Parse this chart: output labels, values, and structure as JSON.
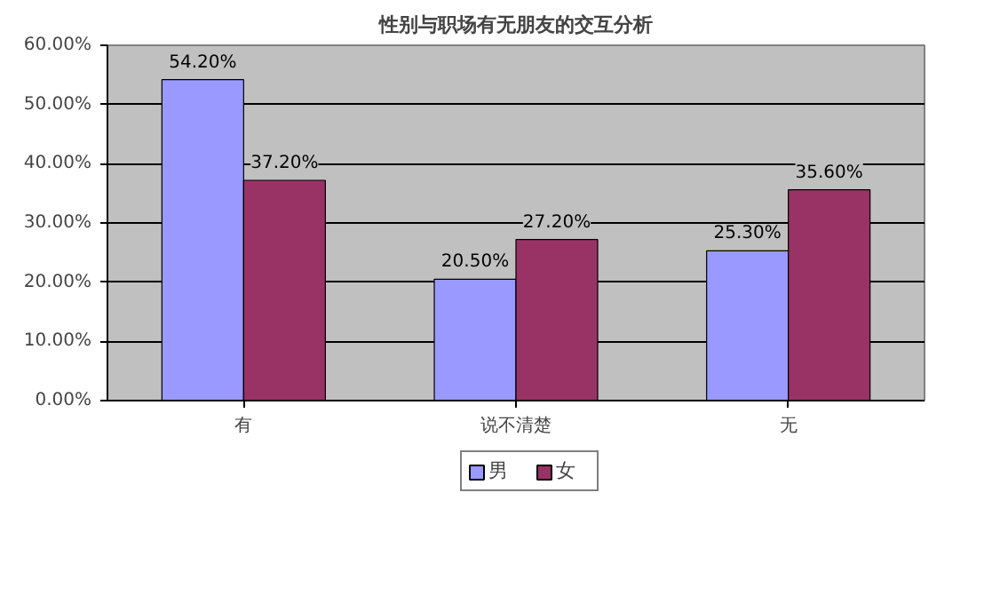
{
  "chart_data": {
    "type": "bar",
    "title": "性别与职场有无朋友的交互分析",
    "categories": [
      "有",
      "说不清楚",
      "无"
    ],
    "series": [
      {
        "name": "男",
        "color": "#9999ff",
        "values": [
          54.2,
          20.5,
          25.3
        ],
        "value_labels": [
          "54.20%",
          "20.50%",
          "25.30%"
        ]
      },
      {
        "name": "女",
        "color": "#993366",
        "values": [
          37.2,
          27.2,
          35.6
        ],
        "value_labels": [
          "37.20%",
          "27.20%",
          "35.60%"
        ]
      }
    ],
    "ylim": [
      0,
      60
    ],
    "yticks": [
      {
        "value": 0,
        "label": "0.00%"
      },
      {
        "value": 10,
        "label": "10.00%"
      },
      {
        "value": 20,
        "label": "20.00%"
      },
      {
        "value": 30,
        "label": "30.00%"
      },
      {
        "value": 40,
        "label": "40.00%"
      },
      {
        "value": 50,
        "label": "50.00%"
      },
      {
        "value": 60,
        "label": "60.00%"
      }
    ],
    "grid": "y",
    "legend": "bottom"
  }
}
